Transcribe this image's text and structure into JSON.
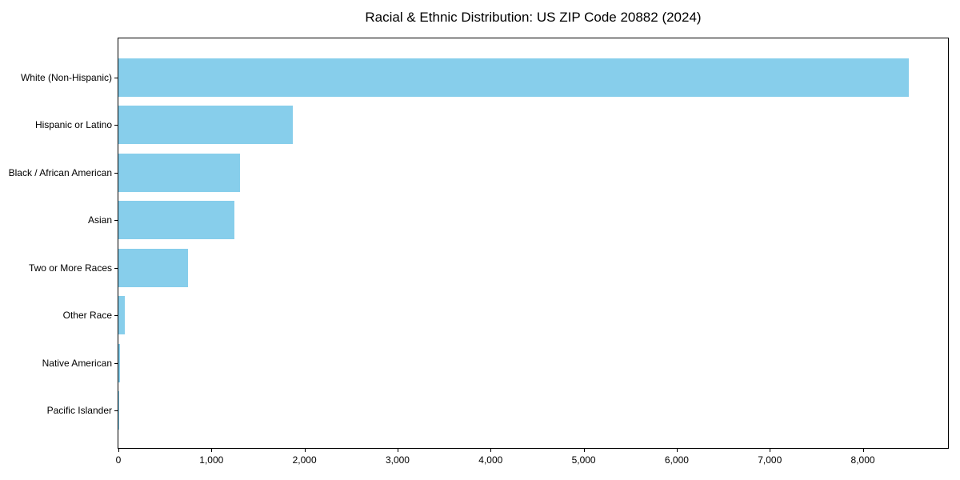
{
  "chart_data": {
    "type": "bar",
    "orientation": "horizontal",
    "title": "Racial & Ethnic Distribution: US ZIP Code 20882 (2024)",
    "categories": [
      "White (Non-Hispanic)",
      "Hispanic or Latino",
      "Black / African American",
      "Asian",
      "Two or More Races",
      "Other Race",
      "Native American",
      "Pacific Islander"
    ],
    "values": [
      8490,
      1870,
      1310,
      1250,
      745,
      70,
      15,
      5
    ],
    "xlabel": "",
    "ylabel": "",
    "xlim": [
      0,
      8915
    ],
    "xticks": [
      0,
      1000,
      2000,
      3000,
      4000,
      5000,
      6000,
      7000,
      8000
    ],
    "xtick_labels": [
      "0",
      "1,000",
      "2,000",
      "3,000",
      "4,000",
      "5,000",
      "6,000",
      "7,000",
      "8,000"
    ],
    "bar_color": "#87CEEB",
    "grid": false,
    "legend": null,
    "background_color": "#ffffff",
    "spine_color": "#000000"
  }
}
